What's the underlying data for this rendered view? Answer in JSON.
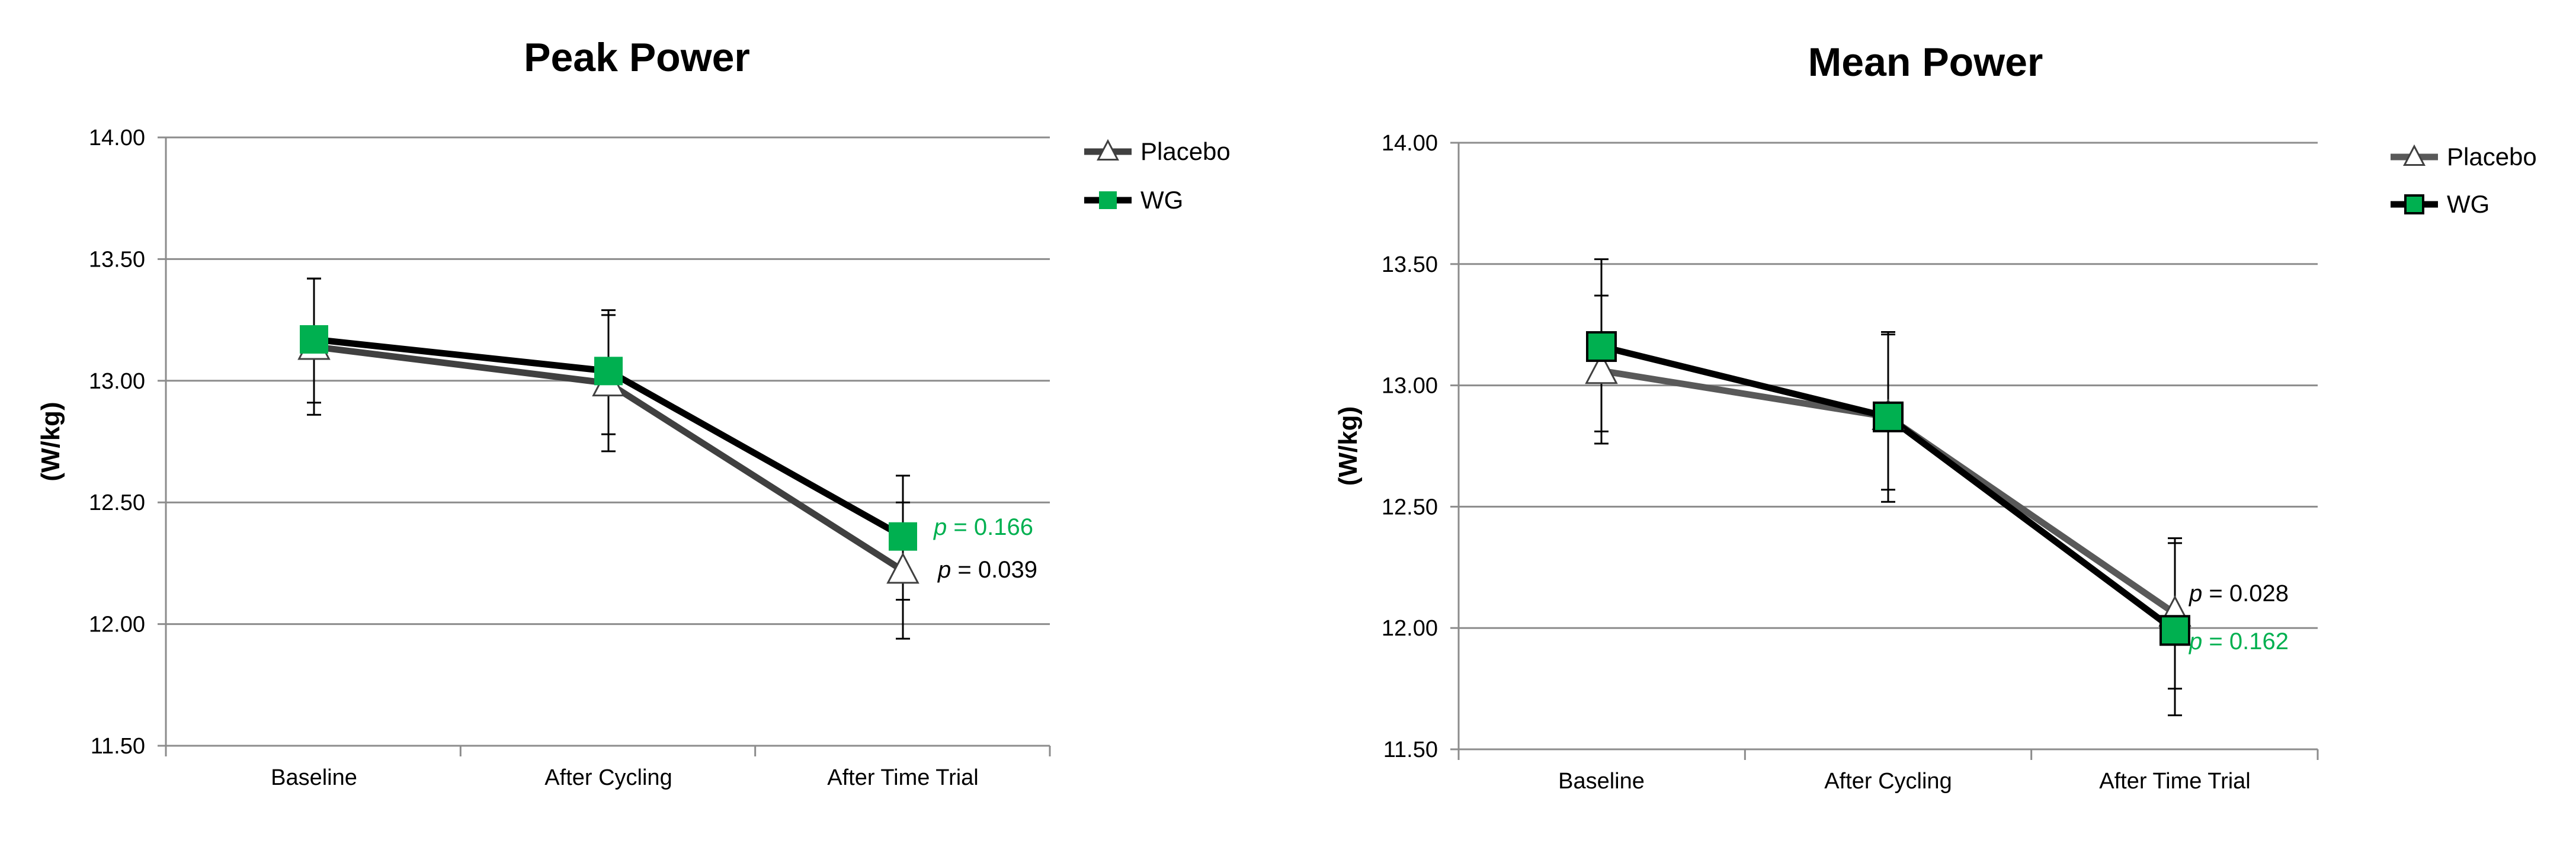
{
  "chart_data": [
    {
      "type": "line",
      "title": "Peak Power",
      "ylabel": "(W/kg)",
      "ylim": [
        11.5,
        14.0
      ],
      "yticks": [
        "11.50",
        "12.00",
        "12.50",
        "13.00",
        "13.50",
        "14.00"
      ],
      "categories": [
        "Baseline",
        "After Cycling",
        "After Time Trial"
      ],
      "grid": true,
      "legend": "top-right",
      "series": [
        {
          "name": "Placebo",
          "values": [
            13.14,
            12.99,
            12.22
          ],
          "err_low": [
            12.86,
            12.71,
            11.94
          ],
          "err_high": [
            13.42,
            13.27,
            12.5
          ],
          "color": "#404040",
          "marker": "triangle-open"
        },
        {
          "name": "WG",
          "values": [
            13.17,
            13.04,
            12.36
          ],
          "err_low": [
            12.91,
            12.78,
            12.1
          ],
          "err_high": [
            13.42,
            13.29,
            12.61
          ],
          "color": "#000000",
          "marker": "square-green"
        }
      ],
      "annotations": [
        {
          "text": "p = 0.166",
          "p": "p",
          "rest": " = 0.166",
          "color": "#00b050"
        },
        {
          "text": "p = 0.039",
          "p": "p",
          "rest": " = 0.039",
          "color": "#000000"
        }
      ]
    },
    {
      "type": "line",
      "title": "Mean Power",
      "ylabel": "(W/kg)",
      "ylim": [
        11.5,
        14.0
      ],
      "yticks": [
        "11.50",
        "12.00",
        "12.50",
        "13.00",
        "13.50",
        "14.00"
      ],
      "categories": [
        "Baseline",
        "After Cycling",
        "After Time Trial"
      ],
      "grid": true,
      "legend": "top-right",
      "series": [
        {
          "name": "Placebo",
          "values": [
            13.06,
            12.87,
            12.06
          ],
          "err_low": [
            12.76,
            12.57,
            11.75
          ],
          "err_high": [
            13.37,
            13.21,
            12.37
          ],
          "color": "#595959",
          "marker": "triangle-open"
        },
        {
          "name": "WG",
          "values": [
            13.16,
            12.87,
            11.99
          ],
          "err_low": [
            12.81,
            12.52,
            11.64
          ],
          "err_high": [
            13.52,
            13.22,
            12.35
          ],
          "color": "#000000",
          "marker": "square-green"
        }
      ],
      "annotations": [
        {
          "text": "p = 0.028",
          "p": "p",
          "rest": " = 0.028",
          "color": "#000000"
        },
        {
          "text": "p = 0.162",
          "p": "p",
          "rest": " = 0.162",
          "color": "#00b050"
        }
      ]
    }
  ],
  "colors": {
    "wg_fill": "#00b050",
    "grid": "#8c8c8c",
    "placebo_peak": "#404040",
    "placebo_mean": "#595959"
  }
}
